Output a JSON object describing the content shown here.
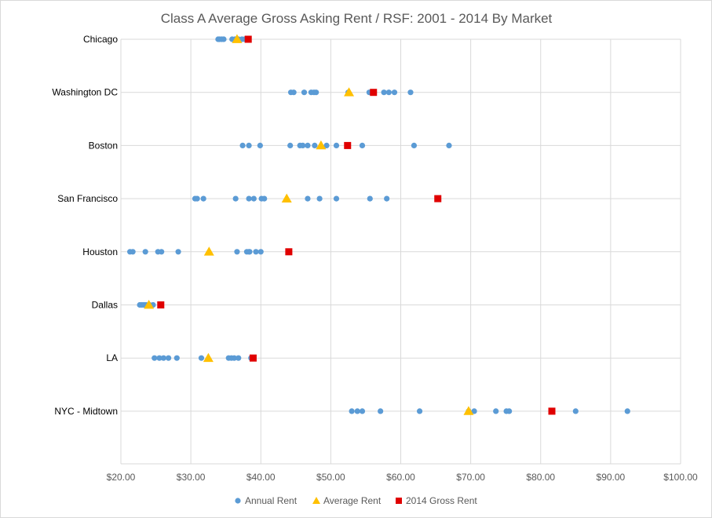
{
  "chart_data": {
    "type": "scatter",
    "title": "Class A Average Gross Asking Rent / RSF: 2001 - 2014 By Market",
    "xlabel": "",
    "ylabel": "",
    "xlim": [
      20,
      100
    ],
    "x_ticks": [
      "$20.00",
      "$30.00",
      "$40.00",
      "$50.00",
      "$60.00",
      "$70.00",
      "$80.00",
      "$90.00",
      "$100.00"
    ],
    "categories": [
      "Chicago",
      "Washington DC",
      "Boston",
      "San Francisco",
      "Houston",
      "Dallas",
      "LA",
      "NYC - Midtown"
    ],
    "grid": true,
    "legend_position": "bottom",
    "series": [
      {
        "name": "Annual Rent",
        "marker": "circle",
        "color": "#5b9bd5",
        "values": {
          "Chicago": [
            33.9,
            34.1,
            34.4,
            34.7,
            35.9,
            36.3,
            36.8,
            37.3,
            37.7
          ],
          "Washington DC": [
            44.3,
            44.7,
            46.2,
            47.2,
            47.6,
            47.9,
            52.5,
            55.5,
            56.2,
            57.6,
            58.3,
            59.1,
            61.4
          ],
          "Boston": [
            37.4,
            38.3,
            39.9,
            44.2,
            45.6,
            46.0,
            46.7,
            47.7,
            49.4,
            50.8,
            54.5,
            61.9,
            66.9
          ],
          "San Francisco": [
            30.6,
            30.9,
            31.8,
            36.4,
            38.3,
            39.0,
            40.1,
            40.5,
            46.7,
            48.4,
            50.8,
            55.6,
            58.0
          ],
          "Houston": [
            21.3,
            21.7,
            23.5,
            25.3,
            25.8,
            28.2,
            36.6,
            38.0,
            38.3,
            38.4,
            39.3,
            40.0
          ],
          "Dallas": [
            22.7,
            23.0,
            23.3,
            23.6,
            24.1,
            24.6
          ],
          "LA": [
            24.8,
            25.5,
            26.1,
            26.8,
            28.0,
            31.5,
            35.4,
            35.8,
            36.2,
            36.8,
            38.6
          ],
          "NYC - Midtown": [
            53.0,
            53.8,
            54.5,
            57.1,
            62.7,
            69.7,
            70.5,
            73.6,
            75.1,
            75.5,
            85.0,
            92.4
          ]
        }
      },
      {
        "name": "Average Rent",
        "marker": "triangle",
        "color": "#ffc000",
        "values": {
          "Chicago": 36.6,
          "Washington DC": 52.6,
          "Boston": 48.6,
          "San Francisco": 43.7,
          "Houston": 32.6,
          "Dallas": 24.0,
          "LA": 32.5,
          "NYC - Midtown": 69.7
        }
      },
      {
        "name": "2014 Gross Rent",
        "marker": "square",
        "color": "#e00000",
        "values": {
          "Chicago": 38.2,
          "Washington DC": 56.1,
          "Boston": 52.4,
          "San Francisco": 65.3,
          "Houston": 44.0,
          "Dallas": 25.7,
          "LA": 38.9,
          "NYC - Midtown": 81.6
        }
      }
    ]
  }
}
